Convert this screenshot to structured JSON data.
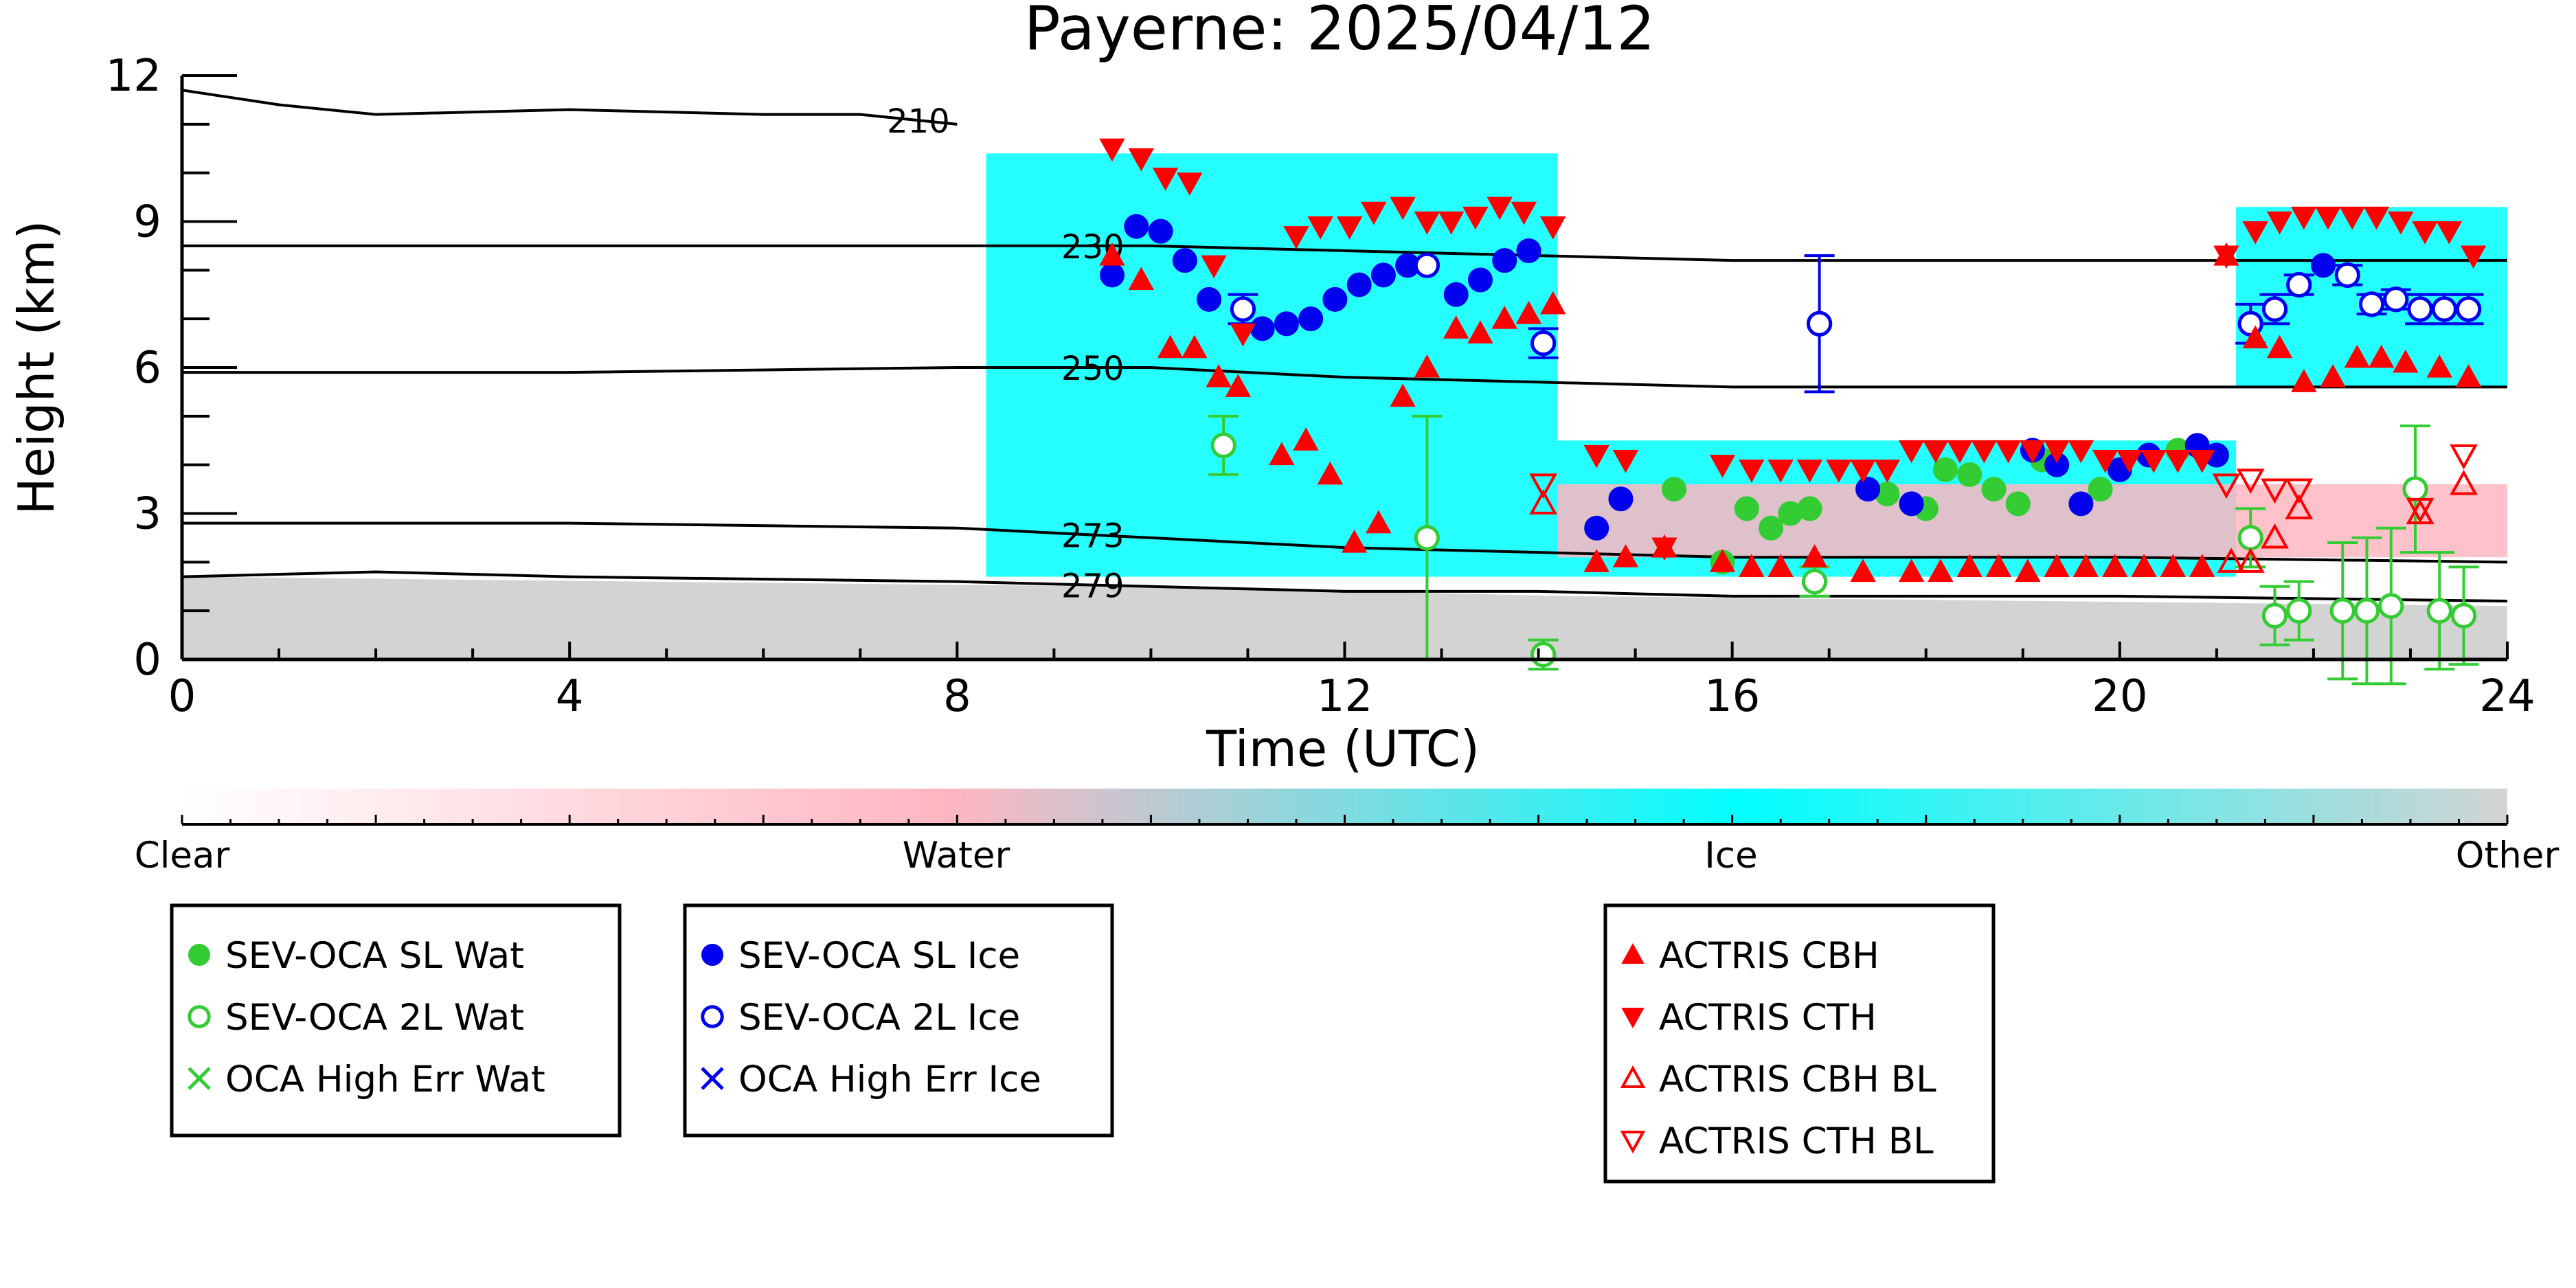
{
  "chart_data": {
    "type": "scatter",
    "title": "Payerne: 2025/04/12",
    "xlabel": "Time (UTC)",
    "ylabel": "Height (km)",
    "xlim": [
      0,
      24
    ],
    "ylim": [
      0,
      12
    ],
    "x_ticks": [
      "0",
      "4",
      "8",
      "12",
      "16",
      "20",
      "24"
    ],
    "y_ticks": [
      "0",
      "3",
      "6",
      "9",
      "12"
    ],
    "colorbar": {
      "labels": [
        "Clear",
        "Water",
        "Ice",
        "Other"
      ],
      "colors": {
        "clear": "#ffffff",
        "water": "#ffb6c1",
        "ice": "#00ffff",
        "other": "#d3d3d3"
      }
    },
    "background_regions": [
      {
        "class": "Other",
        "x": [
          0,
          24
        ],
        "y_top": [
          1.7,
          1.6,
          1.5,
          1.3,
          1.2,
          1.1
        ],
        "color": "#d3d3d3"
      },
      {
        "class": "Ice",
        "x": [
          8.3,
          14.2
        ],
        "y_range": [
          1.7,
          10.4
        ],
        "color": "#00ffff"
      },
      {
        "class": "Ice",
        "x": [
          14.2,
          21.2
        ],
        "y_range": [
          1.7,
          4.5
        ],
        "color": "#00ffff"
      },
      {
        "class": "Ice",
        "x": [
          21.2,
          24
        ],
        "y_range": [
          5.6,
          9.3
        ],
        "color": "#00ffff"
      },
      {
        "class": "Water",
        "x": [
          14.2,
          24
        ],
        "y_range": [
          2.1,
          3.6
        ],
        "color": "#ffb6c1"
      }
    ],
    "contours": [
      {
        "label": "210",
        "x": [
          0,
          1,
          2,
          4,
          6,
          7,
          8
        ],
        "y": [
          11.7,
          11.4,
          11.2,
          11.3,
          11.2,
          11.2,
          11.0
        ]
      },
      {
        "label": "230",
        "x": [
          0,
          4,
          8,
          10,
          12,
          14,
          16,
          20,
          24
        ],
        "y": [
          8.5,
          8.5,
          8.5,
          8.5,
          8.4,
          8.3,
          8.2,
          8.2,
          8.2
        ]
      },
      {
        "label": "250",
        "x": [
          0,
          4,
          8,
          10,
          12,
          14,
          16,
          20,
          24
        ],
        "y": [
          5.9,
          5.9,
          6.0,
          6.0,
          5.8,
          5.7,
          5.6,
          5.6,
          5.6
        ]
      },
      {
        "label": "273",
        "x": [
          0,
          4,
          8,
          10,
          12,
          14,
          16,
          20,
          24
        ],
        "y": [
          2.8,
          2.8,
          2.7,
          2.5,
          2.3,
          2.2,
          2.1,
          2.1,
          2.0
        ]
      },
      {
        "label": "279",
        "x": [
          0,
          2,
          4,
          8,
          10,
          12,
          14,
          16,
          20,
          24
        ],
        "y": [
          1.7,
          1.8,
          1.7,
          1.6,
          1.5,
          1.4,
          1.4,
          1.3,
          1.3,
          1.2
        ]
      }
    ],
    "series": [
      {
        "name": "SEV-OCA SL Wat",
        "marker": "circle-filled",
        "color": "#33cc33",
        "x": [
          15.4,
          15.9,
          16.15,
          16.4,
          16.6,
          16.8,
          17.6,
          18.0,
          18.2,
          18.45,
          18.7,
          18.95,
          19.2,
          19.8,
          20.6
        ],
        "y": [
          3.5,
          2.0,
          3.1,
          2.7,
          3.0,
          3.1,
          3.4,
          3.1,
          3.9,
          3.8,
          3.5,
          3.2,
          4.1,
          3.5,
          4.3
        ]
      },
      {
        "name": "SEV-OCA 2L Wat",
        "marker": "circle-open",
        "color": "#33cc33",
        "x": [
          10.75,
          12.85,
          14.05,
          16.85,
          21.35,
          21.6,
          21.85,
          22.3,
          22.55,
          22.8,
          23.05,
          23.3,
          23.55
        ],
        "y": [
          4.4,
          2.5,
          0.1,
          1.6,
          2.5,
          0.9,
          1.0,
          1.0,
          1.0,
          1.1,
          3.5,
          1.0,
          0.9
        ],
        "err": [
          0.6,
          2.5,
          0.3,
          0.3,
          0.6,
          0.6,
          0.6,
          1.4,
          1.5,
          1.6,
          1.3,
          1.2,
          1.0
        ]
      },
      {
        "name": "OCA High Err Wat",
        "marker": "x",
        "color": "#33cc33",
        "x": [],
        "y": []
      },
      {
        "name": "SEV-OCA SL Ice",
        "marker": "circle-filled",
        "color": "#0000ee",
        "x": [
          9.6,
          9.85,
          10.1,
          10.35,
          10.6,
          11.15,
          11.4,
          11.65,
          11.9,
          12.15,
          12.4,
          12.65,
          13.15,
          13.4,
          13.65,
          13.9,
          14.6,
          14.85,
          17.4,
          17.85,
          19.1,
          19.35,
          19.6,
          20.0,
          20.3,
          20.8,
          21.0,
          22.1
        ],
        "y": [
          7.9,
          8.9,
          8.8,
          8.2,
          7.4,
          6.8,
          6.9,
          7.0,
          7.4,
          7.7,
          7.9,
          8.1,
          7.5,
          7.8,
          8.2,
          8.4,
          2.7,
          3.3,
          3.5,
          3.2,
          4.3,
          4.0,
          3.2,
          3.9,
          4.2,
          4.4,
          4.2,
          8.1
        ]
      },
      {
        "name": "SEV-OCA 2L Ice",
        "marker": "circle-open",
        "color": "#0000ee",
        "x": [
          10.95,
          12.85,
          14.05,
          16.9,
          21.35,
          21.6,
          21.85,
          22.35,
          22.6,
          22.85,
          23.1,
          23.35,
          23.6
        ],
        "y": [
          7.2,
          8.1,
          6.5,
          6.9,
          6.9,
          7.2,
          7.7,
          7.9,
          7.3,
          7.4,
          7.2,
          7.2,
          7.2
        ],
        "err": [
          0.3,
          0.0,
          0.3,
          1.4,
          0.4,
          0.3,
          0.2,
          0.2,
          0.2,
          0.2,
          0.3,
          0.3,
          0.3
        ]
      },
      {
        "name": "OCA High Err Ice",
        "marker": "x",
        "color": "#0000ee",
        "x": [],
        "y": []
      },
      {
        "name": "ACTRIS CBH",
        "marker": "triangle-up-filled",
        "color": "#ff0000",
        "x": [
          9.6,
          9.9,
          10.2,
          10.45,
          10.7,
          10.9,
          11.35,
          11.6,
          11.85,
          12.1,
          12.35,
          12.6,
          12.85,
          13.15,
          13.4,
          13.65,
          13.9,
          14.15,
          14.6,
          14.9,
          15.3,
          15.9,
          16.2,
          16.5,
          16.85,
          17.35,
          17.85,
          18.15,
          18.45,
          18.75,
          19.05,
          19.35,
          19.65,
          19.95,
          20.25,
          20.55,
          20.85,
          21.1,
          21.4,
          21.65,
          21.9,
          22.2,
          22.45,
          22.7,
          22.95,
          23.3,
          23.6
        ],
        "y": [
          8.3,
          7.8,
          6.4,
          6.4,
          5.8,
          5.6,
          4.2,
          4.5,
          3.8,
          2.4,
          2.8,
          5.4,
          6.0,
          6.8,
          6.7,
          7.0,
          7.1,
          7.3,
          2.0,
          2.1,
          2.3,
          2.0,
          1.9,
          1.9,
          2.1,
          1.8,
          1.8,
          1.8,
          1.9,
          1.9,
          1.8,
          1.9,
          1.9,
          1.9,
          1.9,
          1.9,
          1.9,
          8.3,
          6.6,
          6.4,
          5.7,
          5.8,
          6.2,
          6.2,
          6.1,
          6.0,
          5.8
        ]
      },
      {
        "name": "ACTRIS CTH",
        "marker": "triangle-down-filled",
        "color": "#ff0000",
        "x": [
          9.6,
          9.9,
          10.15,
          10.4,
          10.65,
          10.95,
          11.5,
          11.75,
          12.05,
          12.3,
          12.6,
          12.85,
          13.1,
          13.35,
          13.6,
          13.85,
          14.15,
          14.6,
          14.9,
          15.3,
          15.9,
          16.2,
          16.5,
          16.8,
          17.1,
          17.35,
          17.6,
          17.85,
          18.1,
          18.35,
          18.6,
          18.85,
          19.1,
          19.35,
          19.6,
          19.85,
          20.1,
          20.35,
          20.6,
          20.85,
          21.1,
          21.4,
          21.65,
          21.9,
          22.15,
          22.4,
          22.65,
          22.9,
          23.15,
          23.4,
          23.65
        ],
        "y": [
          10.5,
          10.3,
          9.9,
          9.8,
          8.1,
          6.7,
          8.7,
          8.9,
          8.9,
          9.2,
          9.3,
          9.0,
          9.0,
          9.1,
          9.3,
          9.2,
          8.9,
          4.2,
          4.1,
          2.3,
          4.0,
          3.9,
          3.9,
          3.9,
          3.9,
          3.9,
          3.9,
          4.3,
          4.3,
          4.3,
          4.3,
          4.3,
          4.3,
          4.3,
          4.3,
          4.1,
          4.1,
          4.1,
          4.1,
          4.1,
          8.3,
          8.8,
          9.0,
          9.1,
          9.1,
          9.1,
          9.1,
          9.0,
          8.8,
          8.8,
          8.3
        ]
      },
      {
        "name": "ACTRIS CBH BL",
        "marker": "triangle-up-open",
        "color": "#ff0000",
        "x": [
          14.05,
          21.15,
          21.35,
          21.6,
          21.85,
          23.1,
          23.55
        ],
        "y": [
          3.2,
          2.0,
          2.0,
          2.5,
          3.1,
          3.0,
          3.6
        ],
        "err": [
          0,
          0,
          0,
          0,
          0,
          0,
          0
        ]
      },
      {
        "name": "ACTRIS CTH BL",
        "marker": "triangle-down-open",
        "color": "#ff0000",
        "x": [
          14.05,
          21.1,
          21.35,
          21.6,
          21.85,
          23.1,
          23.55
        ],
        "y": [
          3.6,
          3.6,
          3.7,
          3.5,
          3.5,
          3.1,
          4.2
        ],
        "err": [
          0,
          0,
          0,
          0,
          0,
          0,
          0
        ]
      }
    ],
    "legend_placement": "below"
  }
}
